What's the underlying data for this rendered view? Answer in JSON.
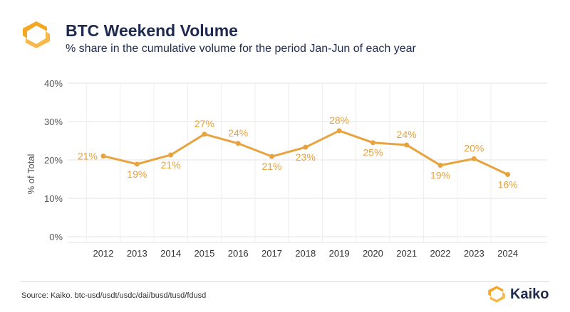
{
  "header": {
    "title": "BTC Weekend Volume",
    "subtitle": "% share in the cumulative volume for the period Jan-Jun of each year",
    "logo_icon": "kaiko-logo-icon"
  },
  "footer": {
    "source": "Source: Kaiko. btc-usd/usdt/usdc/dai/busd/tusd/fdusd",
    "brand": "Kaiko"
  },
  "colors": {
    "line": "#e8a23e",
    "label": "#e8a23e",
    "brand_orange": "#f5a623",
    "text_dark": "#1f2a4f"
  },
  "chart_data": {
    "type": "line",
    "categories": [
      "2012",
      "2013",
      "2014",
      "2015",
      "2016",
      "2017",
      "2018",
      "2019",
      "2020",
      "2021",
      "2022",
      "2023",
      "2024"
    ],
    "series": [
      {
        "values": [
          21,
          19,
          21,
          27,
          24,
          21,
          23,
          28,
          25,
          24,
          19,
          20,
          16
        ],
        "labels": [
          "21%",
          "19%",
          "21%",
          "27%",
          "24%",
          "21%",
          "23%",
          "28%",
          "25%",
          "24%",
          "19%",
          "20%",
          "16%"
        ]
      }
    ],
    "plot_values": [
      21.0,
      18.9,
      21.3,
      26.7,
      24.3,
      20.9,
      23.3,
      27.6,
      24.5,
      23.9,
      18.6,
      20.3,
      16.2
    ],
    "label_positions": [
      "left",
      "below",
      "below",
      "above",
      "above",
      "below",
      "below",
      "above",
      "below",
      "above",
      "below",
      "above",
      "below"
    ],
    "ylabel": "% of Total",
    "xlabel": "",
    "yticks": [
      "0%",
      "10%",
      "20%",
      "30%",
      "40%"
    ],
    "ylim": [
      0,
      40
    ],
    "grid": true
  }
}
